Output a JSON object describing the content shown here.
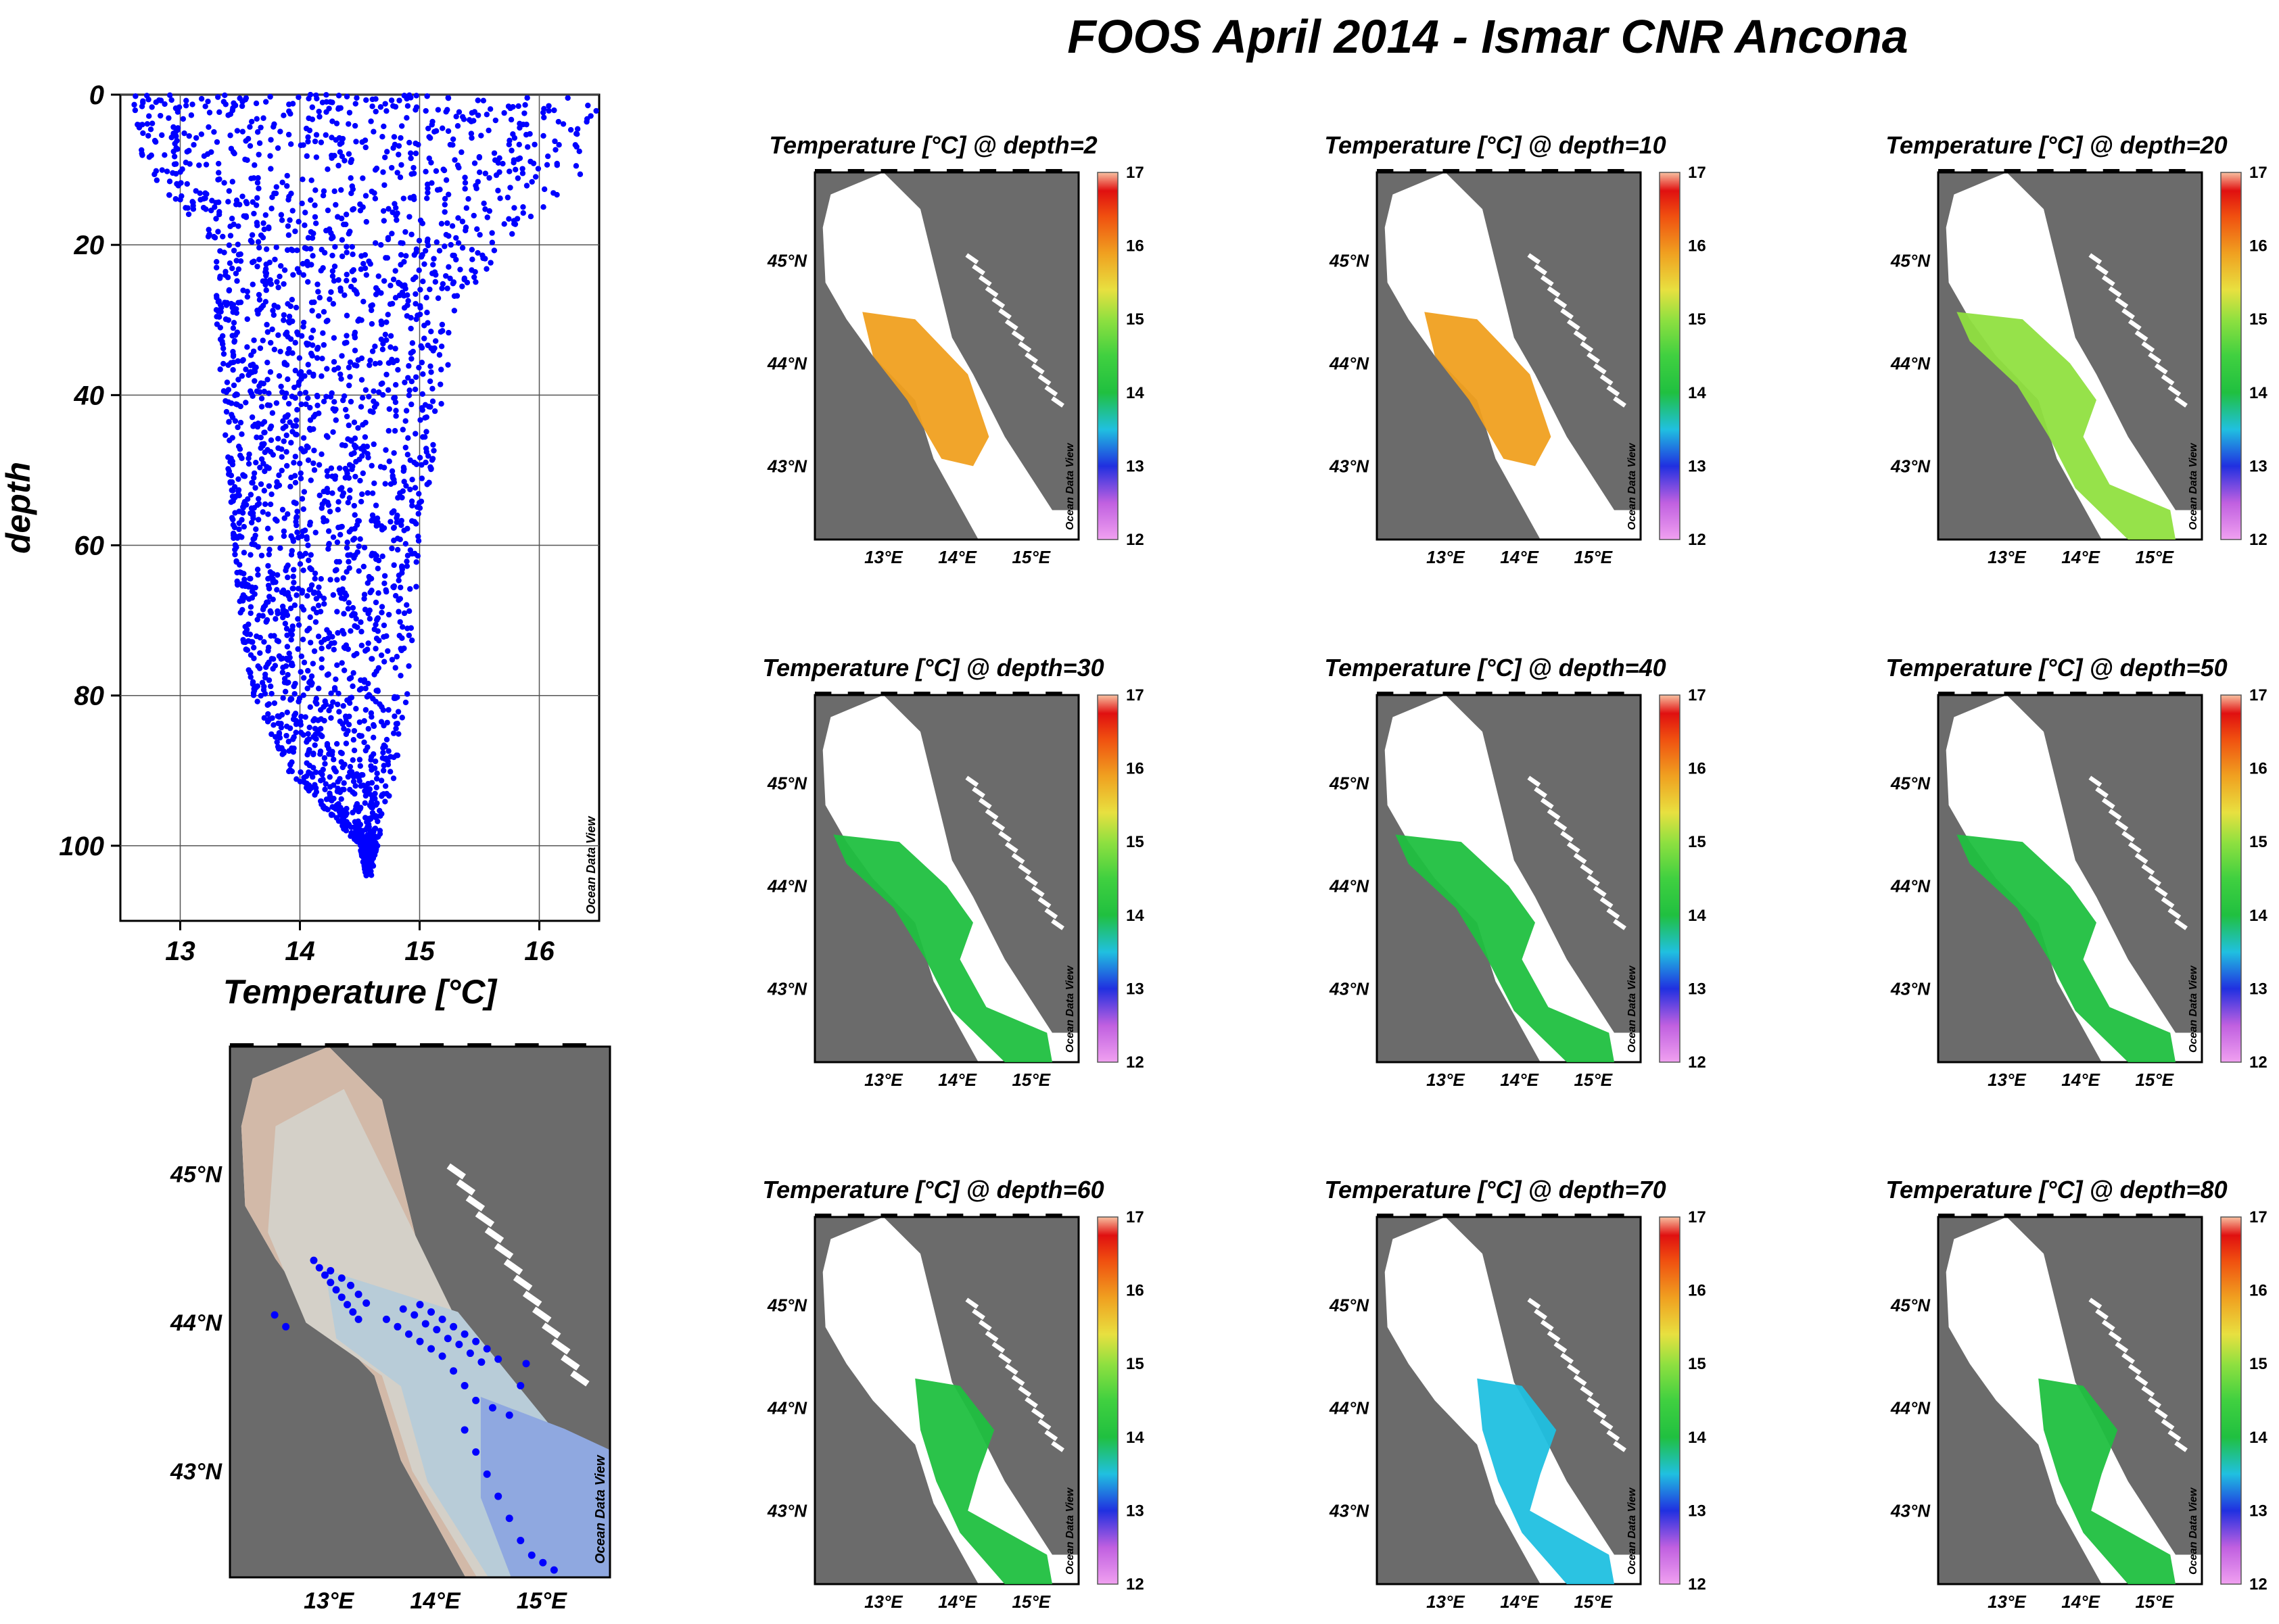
{
  "title": "FOOS April 2014 - Ismar CNR Ancona",
  "watermark": "Ocean Data View",
  "colors": {
    "scatter_points": "#0000ff",
    "land": "#6b6b6b",
    "sea_background": "#ffffff",
    "shelf_shallow": "#d4d0c8",
    "shelf_mid": "#b8ccd8",
    "deep_basin": "#8fa8e0",
    "coast_band": "#d2b9a8"
  },
  "chart_data": [
    {
      "type": "scatter",
      "id": "profile",
      "xlabel": "Temperature [°C]",
      "ylabel": "depth",
      "xlim": [
        12.5,
        16.5
      ],
      "ylim": [
        0,
        110
      ],
      "y_inverted": true,
      "x_ticks": [
        13,
        14,
        15,
        16
      ],
      "y_ticks": [
        0,
        20,
        40,
        60,
        80,
        100
      ],
      "grid": true,
      "envelope": {
        "depth": [
          0,
          10,
          20,
          30,
          40,
          50,
          60,
          70,
          80,
          90,
          100,
          104
        ],
        "t_min": [
          12.6,
          12.7,
          13.3,
          13.3,
          13.35,
          13.4,
          13.45,
          13.5,
          13.6,
          13.9,
          14.5,
          14.55
        ],
        "t_max": [
          16.5,
          16.4,
          15.7,
          15.3,
          15.2,
          15.1,
          15.0,
          14.95,
          14.9,
          14.8,
          14.65,
          14.6
        ]
      }
    },
    {
      "type": "map",
      "id": "station-map",
      "lon_ticks": [
        "13°E",
        "14°E",
        "15°E"
      ],
      "lat_ticks": [
        "45°N",
        "44°N",
        "43°N"
      ],
      "stations_lonlat": [
        [
          12.95,
          44.45
        ],
        [
          13.0,
          44.4
        ],
        [
          13.05,
          44.35
        ],
        [
          13.1,
          44.3
        ],
        [
          13.15,
          44.25
        ],
        [
          13.2,
          44.2
        ],
        [
          13.25,
          44.15
        ],
        [
          13.3,
          44.1
        ],
        [
          13.35,
          44.05
        ],
        [
          13.1,
          44.38
        ],
        [
          13.2,
          44.33
        ],
        [
          13.28,
          44.28
        ],
        [
          13.35,
          44.22
        ],
        [
          13.42,
          44.16
        ],
        [
          12.7,
          44.0
        ],
        [
          12.6,
          44.08
        ],
        [
          13.6,
          44.05
        ],
        [
          13.7,
          44.0
        ],
        [
          13.8,
          43.95
        ],
        [
          13.9,
          43.9
        ],
        [
          14.0,
          43.85
        ],
        [
          14.1,
          43.8
        ],
        [
          13.75,
          44.12
        ],
        [
          13.85,
          44.08
        ],
        [
          13.95,
          44.02
        ],
        [
          14.05,
          43.98
        ],
        [
          14.15,
          43.92
        ],
        [
          14.25,
          43.88
        ],
        [
          14.35,
          43.82
        ],
        [
          14.45,
          43.76
        ],
        [
          13.9,
          44.15
        ],
        [
          14.0,
          44.1
        ],
        [
          14.1,
          44.05
        ],
        [
          14.2,
          44.0
        ],
        [
          14.3,
          43.95
        ],
        [
          14.4,
          43.9
        ],
        [
          14.5,
          43.85
        ],
        [
          14.6,
          43.78
        ],
        [
          14.2,
          43.7
        ],
        [
          14.3,
          43.6
        ],
        [
          14.4,
          43.5
        ],
        [
          14.55,
          43.45
        ],
        [
          14.7,
          43.4
        ],
        [
          14.8,
          43.6
        ],
        [
          14.85,
          43.75
        ],
        [
          14.3,
          43.3
        ],
        [
          14.4,
          43.15
        ],
        [
          14.5,
          43.0
        ],
        [
          14.6,
          42.85
        ],
        [
          14.7,
          42.7
        ],
        [
          14.8,
          42.55
        ],
        [
          14.9,
          42.45
        ],
        [
          15.0,
          42.4
        ],
        [
          15.1,
          42.35
        ]
      ]
    },
    {
      "type": "heatmap",
      "id": "depth-2",
      "title": "Temperature [°C] @ depth=2",
      "colorbar_range": [
        12,
        17
      ],
      "colorbar_ticks": [
        17,
        16,
        15,
        14,
        13,
        12
      ],
      "dominant_value": 15.3
    },
    {
      "type": "heatmap",
      "id": "depth-10",
      "title": "Temperature [°C] @ depth=10",
      "colorbar_range": [
        12,
        17
      ],
      "colorbar_ticks": [
        17,
        16,
        15,
        14,
        13,
        12
      ],
      "dominant_value": 15.2
    },
    {
      "type": "heatmap",
      "id": "depth-20",
      "title": "Temperature [°C] @ depth=20",
      "colorbar_range": [
        12,
        17
      ],
      "colorbar_ticks": [
        17,
        16,
        15,
        14,
        13,
        12
      ],
      "dominant_value": 14.5
    },
    {
      "type": "heatmap",
      "id": "depth-30",
      "title": "Temperature [°C] @ depth=30",
      "colorbar_range": [
        12,
        17
      ],
      "colorbar_ticks": [
        17,
        16,
        15,
        14,
        13,
        12
      ],
      "dominant_value": 14.3
    },
    {
      "type": "heatmap",
      "id": "depth-40",
      "title": "Temperature [°C] @ depth=40",
      "colorbar_range": [
        12,
        17
      ],
      "colorbar_ticks": [
        17,
        16,
        15,
        14,
        13,
        12
      ],
      "dominant_value": 14.1
    },
    {
      "type": "heatmap",
      "id": "depth-50",
      "title": "Temperature [°C] @ depth=50",
      "colorbar_range": [
        12,
        17
      ],
      "colorbar_ticks": [
        17,
        16,
        15,
        14,
        13,
        12
      ],
      "dominant_value": 14.0
    },
    {
      "type": "heatmap",
      "id": "depth-60",
      "title": "Temperature [°C] @ depth=60",
      "colorbar_range": [
        12,
        17
      ],
      "colorbar_ticks": [
        17,
        16,
        15,
        14,
        13,
        12
      ],
      "dominant_value": 14.0
    },
    {
      "type": "heatmap",
      "id": "depth-70",
      "title": "Temperature [°C] @ depth=70",
      "colorbar_range": [
        12,
        17
      ],
      "colorbar_ticks": [
        17,
        16,
        15,
        14,
        13,
        12
      ],
      "dominant_value": 13.9
    },
    {
      "type": "heatmap",
      "id": "depth-80",
      "title": "Temperature [°C] @ depth=80",
      "colorbar_range": [
        12,
        17
      ],
      "colorbar_ticks": [
        17,
        16,
        15,
        14,
        13,
        12
      ],
      "dominant_value": 14.0
    }
  ],
  "map_axis": {
    "lon_ticks": [
      "13°E",
      "14°E",
      "15°E"
    ],
    "lat_ticks": [
      "45°N",
      "44°N",
      "43°N"
    ]
  }
}
